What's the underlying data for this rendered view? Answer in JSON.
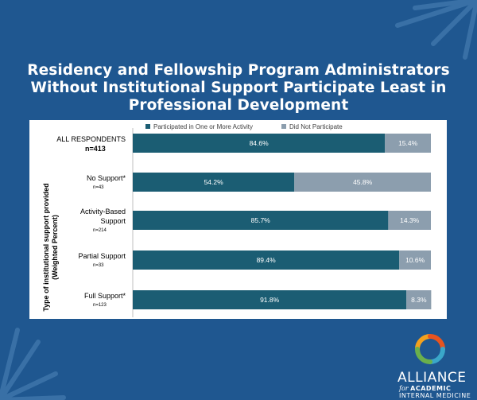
{
  "title_lines": [
    "Residency and Fellowship Program Administrators",
    "Without Institutional Support Participate Least in",
    "Professional Development"
  ],
  "logo": {
    "name": "ALLIANCE",
    "for": "for",
    "academic": "ACADEMIC",
    "internal_medicine": "INTERNAL MEDICINE"
  },
  "colors": {
    "background": "#1f5790",
    "participated": "#1b5d73",
    "did_not": "#8c9eae"
  },
  "chart_data": {
    "type": "bar",
    "orientation": "horizontal",
    "stacked": true,
    "ylabel": "Type of institutional support provided (Weighted Percent)",
    "ylabel_lines": [
      "Type of institutional support provided",
      "(Weighted Percent)"
    ],
    "legend_position": "top",
    "xlim": [
      0,
      100
    ],
    "categories": [
      {
        "label_lines": [
          "ALL RESPONDENTS"
        ],
        "n": "n=413",
        "n_bold": true
      },
      {
        "label_lines": [
          "No Support*"
        ],
        "n": "n=43",
        "n_bold": false
      },
      {
        "label_lines": [
          "Activity-Based",
          "Support"
        ],
        "n": "n=214",
        "n_bold": false
      },
      {
        "label_lines": [
          "Partial Support"
        ],
        "n": "n=33",
        "n_bold": false
      },
      {
        "label_lines": [
          "Full Support*"
        ],
        "n": "n=123",
        "n_bold": false
      }
    ],
    "series": [
      {
        "name": "Participated in One or More Activity",
        "color": "#1b5d73",
        "values": [
          84.6,
          54.2,
          85.7,
          89.4,
          91.8
        ],
        "labels": [
          "84.6%",
          "54.2%",
          "85.7%",
          "89.4%",
          "91.8%"
        ]
      },
      {
        "name": "Did Not Participate",
        "color": "#8c9eae",
        "values": [
          15.4,
          45.8,
          14.3,
          10.6,
          8.3
        ],
        "labels": [
          "15.4%",
          "45.8%",
          "14.3%",
          "10.6%",
          "8.3%"
        ]
      }
    ]
  }
}
